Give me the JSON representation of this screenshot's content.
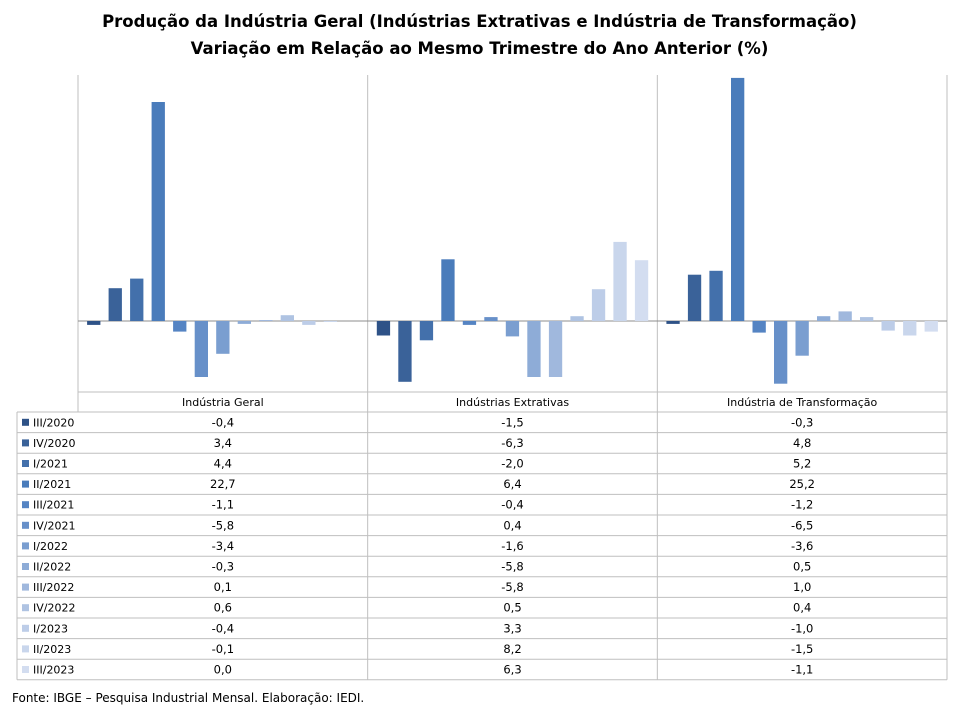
{
  "title": "Produção da Indústria Geral (Indústrias Extrativas e Indústria de Transformação)",
  "subtitle": "Variação em Relação ao Mesmo Trimestre do Ano Anterior (%)",
  "source": "Fonte: IBGE – Pesquisa Industrial Mensal. Elaboração: IEDI.",
  "chart_data": {
    "type": "bar",
    "title": "Produção da Indústria Geral (Indústrias Extrativas e Indústria de Transformação)",
    "subtitle": "Variação em Relação ao Mesmo Trimestre do Ano Anterior (%)",
    "categories": [
      "Indústria Geral",
      "Indústrias Extrativas",
      "Indústria de Transformação"
    ],
    "series": [
      {
        "name": "III/2020",
        "color": "#2e5287",
        "values": [
          -0.4,
          -1.5,
          -0.3
        ]
      },
      {
        "name": "IV/2020",
        "color": "#3a6299",
        "values": [
          3.4,
          -6.3,
          4.8
        ]
      },
      {
        "name": "I/2021",
        "color": "#4370ab",
        "values": [
          4.4,
          -2.0,
          5.2
        ]
      },
      {
        "name": "II/2021",
        "color": "#4a7cbb",
        "values": [
          22.7,
          6.4,
          25.2
        ]
      },
      {
        "name": "III/2021",
        "color": "#5584c3",
        "values": [
          -1.1,
          -0.4,
          -1.2
        ]
      },
      {
        "name": "IV/2021",
        "color": "#6790c9",
        "values": [
          -5.8,
          0.4,
          -6.5
        ]
      },
      {
        "name": "I/2022",
        "color": "#7a9ed0",
        "values": [
          -3.4,
          -1.6,
          -3.6
        ]
      },
      {
        "name": "II/2022",
        "color": "#8eacd7",
        "values": [
          -0.3,
          -5.8,
          0.5
        ]
      },
      {
        "name": "III/2022",
        "color": "#a0b8dd",
        "values": [
          0.1,
          -5.8,
          1.0
        ]
      },
      {
        "name": "IV/2022",
        "color": "#afc3e2",
        "values": [
          0.6,
          0.5,
          0.4
        ]
      },
      {
        "name": "I/2023",
        "color": "#bdcde8",
        "values": [
          -0.4,
          3.3,
          -1.0
        ]
      },
      {
        "name": "II/2023",
        "color": "#c9d6ec",
        "values": [
          -0.1,
          8.2,
          -1.5
        ]
      },
      {
        "name": "III/2023",
        "color": "#d3ddf0",
        "values": [
          0.0,
          6.3,
          -1.1
        ]
      }
    ],
    "ylim": [
      -8,
      25.5
    ],
    "grid": false,
    "legend": "table"
  }
}
